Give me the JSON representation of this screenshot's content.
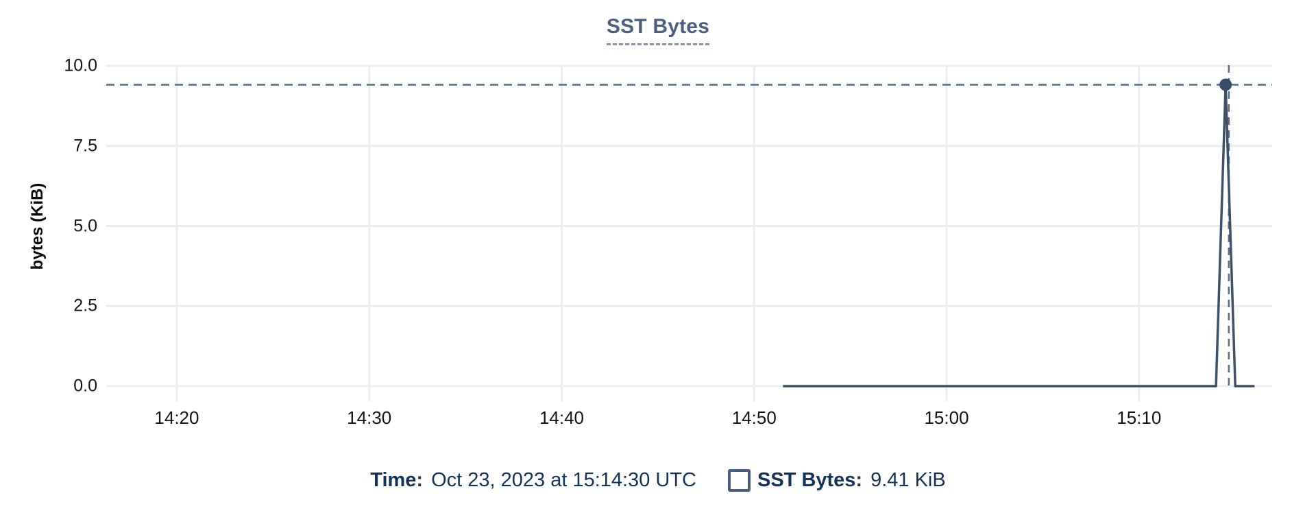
{
  "chart": {
    "title": "SST Bytes",
    "y_axis_label": "bytes (KiB)",
    "y_ticks": [
      "10.0",
      "7.5",
      "5.0",
      "2.5",
      "0.0"
    ],
    "x_ticks": [
      "14:20",
      "14:30",
      "14:40",
      "14:50",
      "15:00",
      "15:10"
    ]
  },
  "tooltip": {
    "time_label": "Time:",
    "time_value": "Oct 23, 2023 at 15:14:30 UTC",
    "series_label": "SST Bytes:",
    "series_value": "9.41 KiB"
  },
  "chart_data": {
    "type": "line",
    "title": "SST Bytes",
    "xlabel": "",
    "ylabel": "bytes (KiB)",
    "ylim": [
      0,
      10
    ],
    "xlim": [
      "14:16:20",
      "15:16:55"
    ],
    "x_ticks": [
      "14:20",
      "14:30",
      "14:40",
      "14:50",
      "15:00",
      "15:10"
    ],
    "y_ticks": [
      10.0,
      7.5,
      5.0,
      2.5,
      0.0
    ],
    "grid": true,
    "legend_position": "bottom",
    "series": [
      {
        "name": "SST Bytes",
        "points": [
          [
            "14:51:30",
            0
          ],
          [
            "15:14:00",
            0
          ],
          [
            "15:14:30",
            9.41
          ],
          [
            "15:15:00",
            0
          ],
          [
            "15:16:00",
            0
          ]
        ]
      }
    ],
    "highlighted_point": {
      "time": "15:14:30",
      "value": 9.41
    },
    "crosshair": {
      "time": "15:14:40",
      "value": 9.41
    },
    "colors": {
      "line": "#3e5168",
      "point": "#3a4d66",
      "crosshair": "#5a7086",
      "gridline": "#ececec",
      "title": "#4c5f7f",
      "tooltip_text": "#14335b",
      "swatch_border": "#4a5c7d"
    }
  }
}
